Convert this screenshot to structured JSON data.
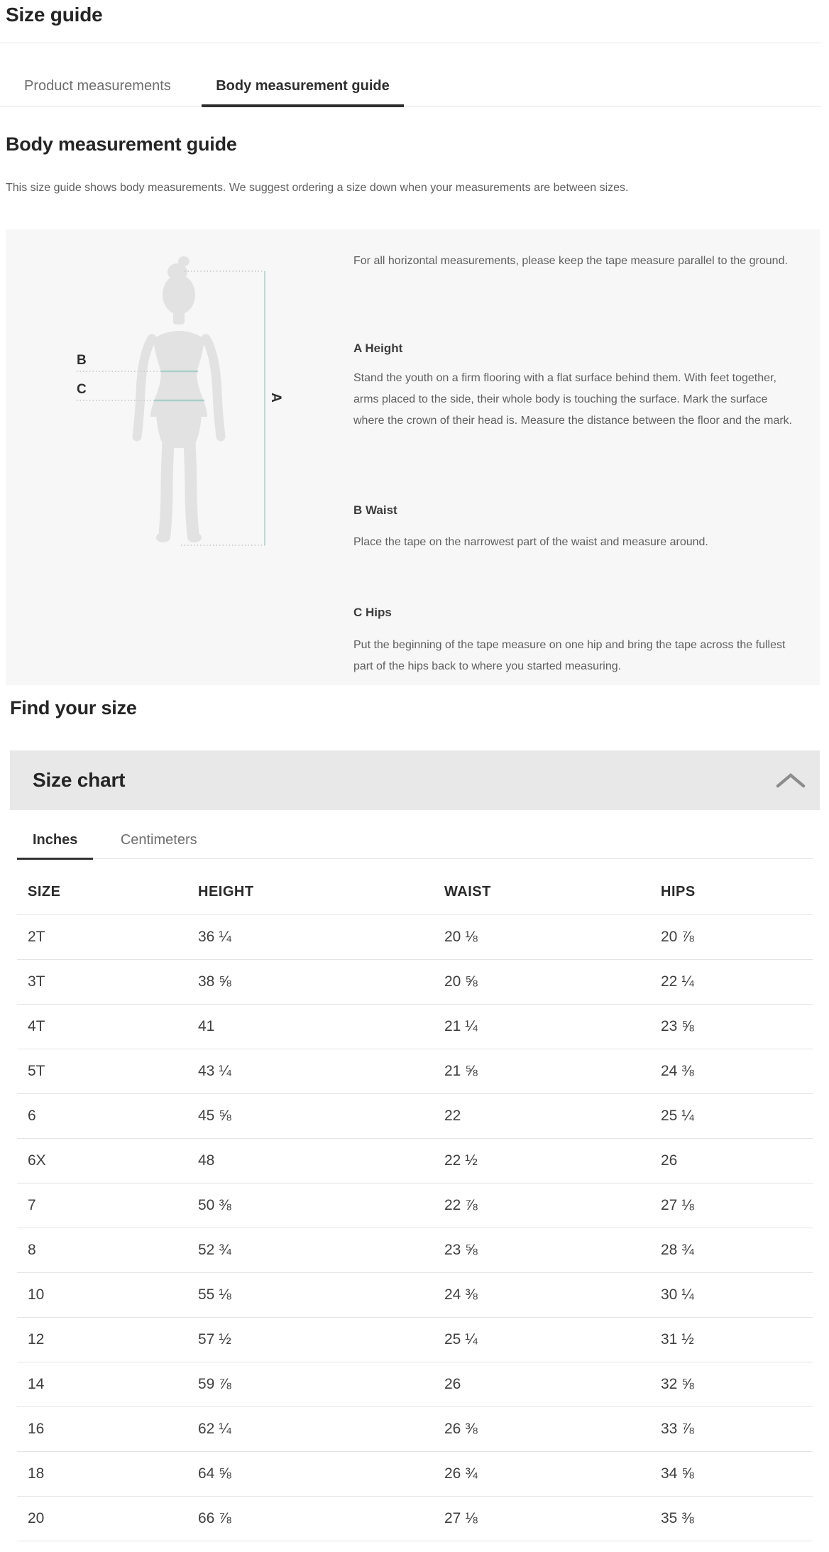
{
  "page": {
    "title": "Size guide"
  },
  "tabs": {
    "product": "Product measurements",
    "body": "Body measurement guide"
  },
  "guide": {
    "heading": "Body measurement guide",
    "description": "This size guide shows body measurements. We suggest ordering a size down when your measurements are between sizes.",
    "intro": "For all horizontal measurements, please keep the tape measure parallel to the ground.",
    "sections": [
      {
        "label": "A Height",
        "text": "Stand the youth on a firm flooring with a flat surface behind them. With feet together, arms placed to the side, their whole body is touching the surface. Mark the surface where the crown of their head is. Measure the distance between the floor and the mark."
      },
      {
        "label": "B Waist",
        "text": "Place the tape on the narrowest part of the waist and measure around."
      },
      {
        "label": "C Hips",
        "text": "Put the beginning of the tape measure on one hip and bring the tape across the fullest part of the hips back to where you started measuring."
      }
    ],
    "figure_labels": {
      "a": "A",
      "b": "B",
      "c": "C"
    }
  },
  "find_your_size": {
    "heading": "Find your size"
  },
  "size_chart": {
    "title": "Size chart",
    "chevron_icon": "chevron-up",
    "unit_tabs": {
      "inches": "Inches",
      "centimeters": "Centimeters"
    },
    "active_unit": "Inches",
    "table": {
      "headers": [
        "SIZE",
        "HEIGHT",
        "WAIST",
        "HIPS"
      ],
      "rows": [
        [
          "2T",
          "36 ¼",
          "20 ⅛",
          "20 ⅞"
        ],
        [
          "3T",
          "38 ⅝",
          "20 ⅝",
          "22 ¼"
        ],
        [
          "4T",
          "41",
          "21 ¼",
          "23 ⅝"
        ],
        [
          "5T",
          "43 ¼",
          "21 ⅝",
          "24 ⅜"
        ],
        [
          "6",
          "45 ⅝",
          "22",
          "25 ¼"
        ],
        [
          "6X",
          "48",
          "22 ½",
          "26"
        ],
        [
          "7",
          "50 ⅜",
          "22 ⅞",
          "27 ⅛"
        ],
        [
          "8",
          "52 ¾",
          "23 ⅝",
          "28 ¾"
        ],
        [
          "10",
          "55 ⅛",
          "24 ⅜",
          "30 ¼"
        ],
        [
          "12",
          "57 ½",
          "25 ¼",
          "31 ½"
        ],
        [
          "14",
          "59 ⅞",
          "26",
          "32 ⅝"
        ],
        [
          "16",
          "62 ¼",
          "26 ⅜",
          "33 ⅞"
        ],
        [
          "18",
          "64 ⅝",
          "26 ¾",
          "34 ⅝"
        ],
        [
          "20",
          "66 ⅞",
          "27 ⅛",
          "35 ⅜"
        ]
      ]
    }
  },
  "colors": {
    "accent_teal": "#a9cfc9",
    "panel_bg": "#f7f7f7",
    "bar_bg": "#e8e8e8",
    "text_dark": "#2e2e2e",
    "text_gray": "#5f5f5f",
    "divider": "#e4e4e4",
    "silhouette": "#e2e2e2"
  }
}
